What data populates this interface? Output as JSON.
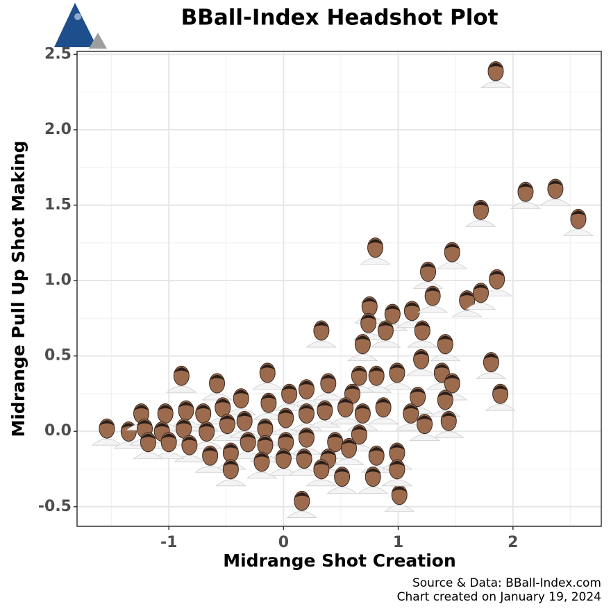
{
  "chart_data": {
    "type": "scatter",
    "title": "BBall-Index Headshot Plot",
    "x_label": "Midrange Shot Creation",
    "y_label": "Midrange Pull Up Shot Making",
    "source": "Source & Data: BBall-Index.com",
    "created": "Chart created on January 19, 2024",
    "xlim": [
      -1.8,
      2.77
    ],
    "ylim": [
      -0.63,
      2.52
    ],
    "xticks": [
      -1,
      0,
      1,
      2
    ],
    "yticks": [
      -0.5,
      {
        "value": 0,
        "label": "0.0"
      },
      0.5,
      {
        "value": 1,
        "label": "1.0"
      },
      1.5,
      {
        "value": 2,
        "label": "2.0"
      },
      2.5
    ],
    "grid": true,
    "color": "#9c6b4e",
    "x": [
      1.85,
      2.11,
      2.37,
      2.57,
      1.72,
      0.8,
      1.47,
      1.26,
      1.86,
      0.33,
      -0.89,
      -0.14,
      -0.58,
      1.81,
      1.89,
      0.16,
      1.01,
      -1.54,
      -1.35,
      -1.24,
      0.75,
      0.95,
      1.12,
      1.3,
      1.6,
      1.72,
      0.74,
      0.89,
      1.21,
      1.41,
      0.69,
      1.2,
      0.99,
      0.81,
      0.66,
      1.38,
      1.47,
      1.17,
      1.41,
      0.87,
      0.6,
      0.39,
      0.2,
      0.05,
      -0.13,
      -0.37,
      -0.53,
      -0.7,
      -0.85,
      -1.03,
      -1.21,
      -1.06,
      -0.87,
      -0.67,
      -0.49,
      -0.34,
      -0.16,
      0.02,
      0.2,
      0.36,
      0.54,
      0.69,
      1.11,
      1.44,
      1.23,
      0.66,
      0.45,
      0.2,
      0.02,
      -0.16,
      -0.31,
      -0.46,
      -0.64,
      -0.82,
      -1.0,
      -1.18,
      -0.46,
      -0.19,
      0.0,
      0.18,
      0.39,
      0.57,
      0.81,
      0.99,
      0.51,
      0.78,
      0.99,
      0.33
    ],
    "values": [
      2.37,
      1.57,
      1.59,
      1.39,
      1.45,
      1.2,
      1.17,
      1.04,
      0.99,
      0.65,
      0.35,
      0.37,
      0.3,
      0.44,
      0.23,
      -0.48,
      -0.44,
      0.0,
      -0.02,
      0.1,
      0.81,
      0.76,
      0.78,
      0.88,
      0.85,
      0.9,
      0.7,
      0.65,
      0.65,
      0.56,
      0.56,
      0.46,
      0.37,
      0.35,
      0.35,
      0.37,
      0.3,
      0.21,
      0.19,
      0.14,
      0.23,
      0.3,
      0.26,
      0.23,
      0.17,
      0.2,
      0.14,
      0.1,
      0.12,
      0.1,
      0.0,
      -0.02,
      0.0,
      -0.02,
      0.03,
      0.05,
      0.0,
      0.07,
      0.1,
      0.12,
      0.14,
      0.1,
      0.1,
      0.05,
      0.03,
      -0.04,
      -0.09,
      -0.06,
      -0.09,
      -0.11,
      -0.09,
      -0.16,
      -0.18,
      -0.11,
      -0.09,
      -0.09,
      -0.27,
      -0.22,
      -0.2,
      -0.2,
      -0.2,
      -0.13,
      -0.18,
      -0.16,
      -0.32,
      -0.32,
      -0.27,
      -0.27
    ]
  }
}
